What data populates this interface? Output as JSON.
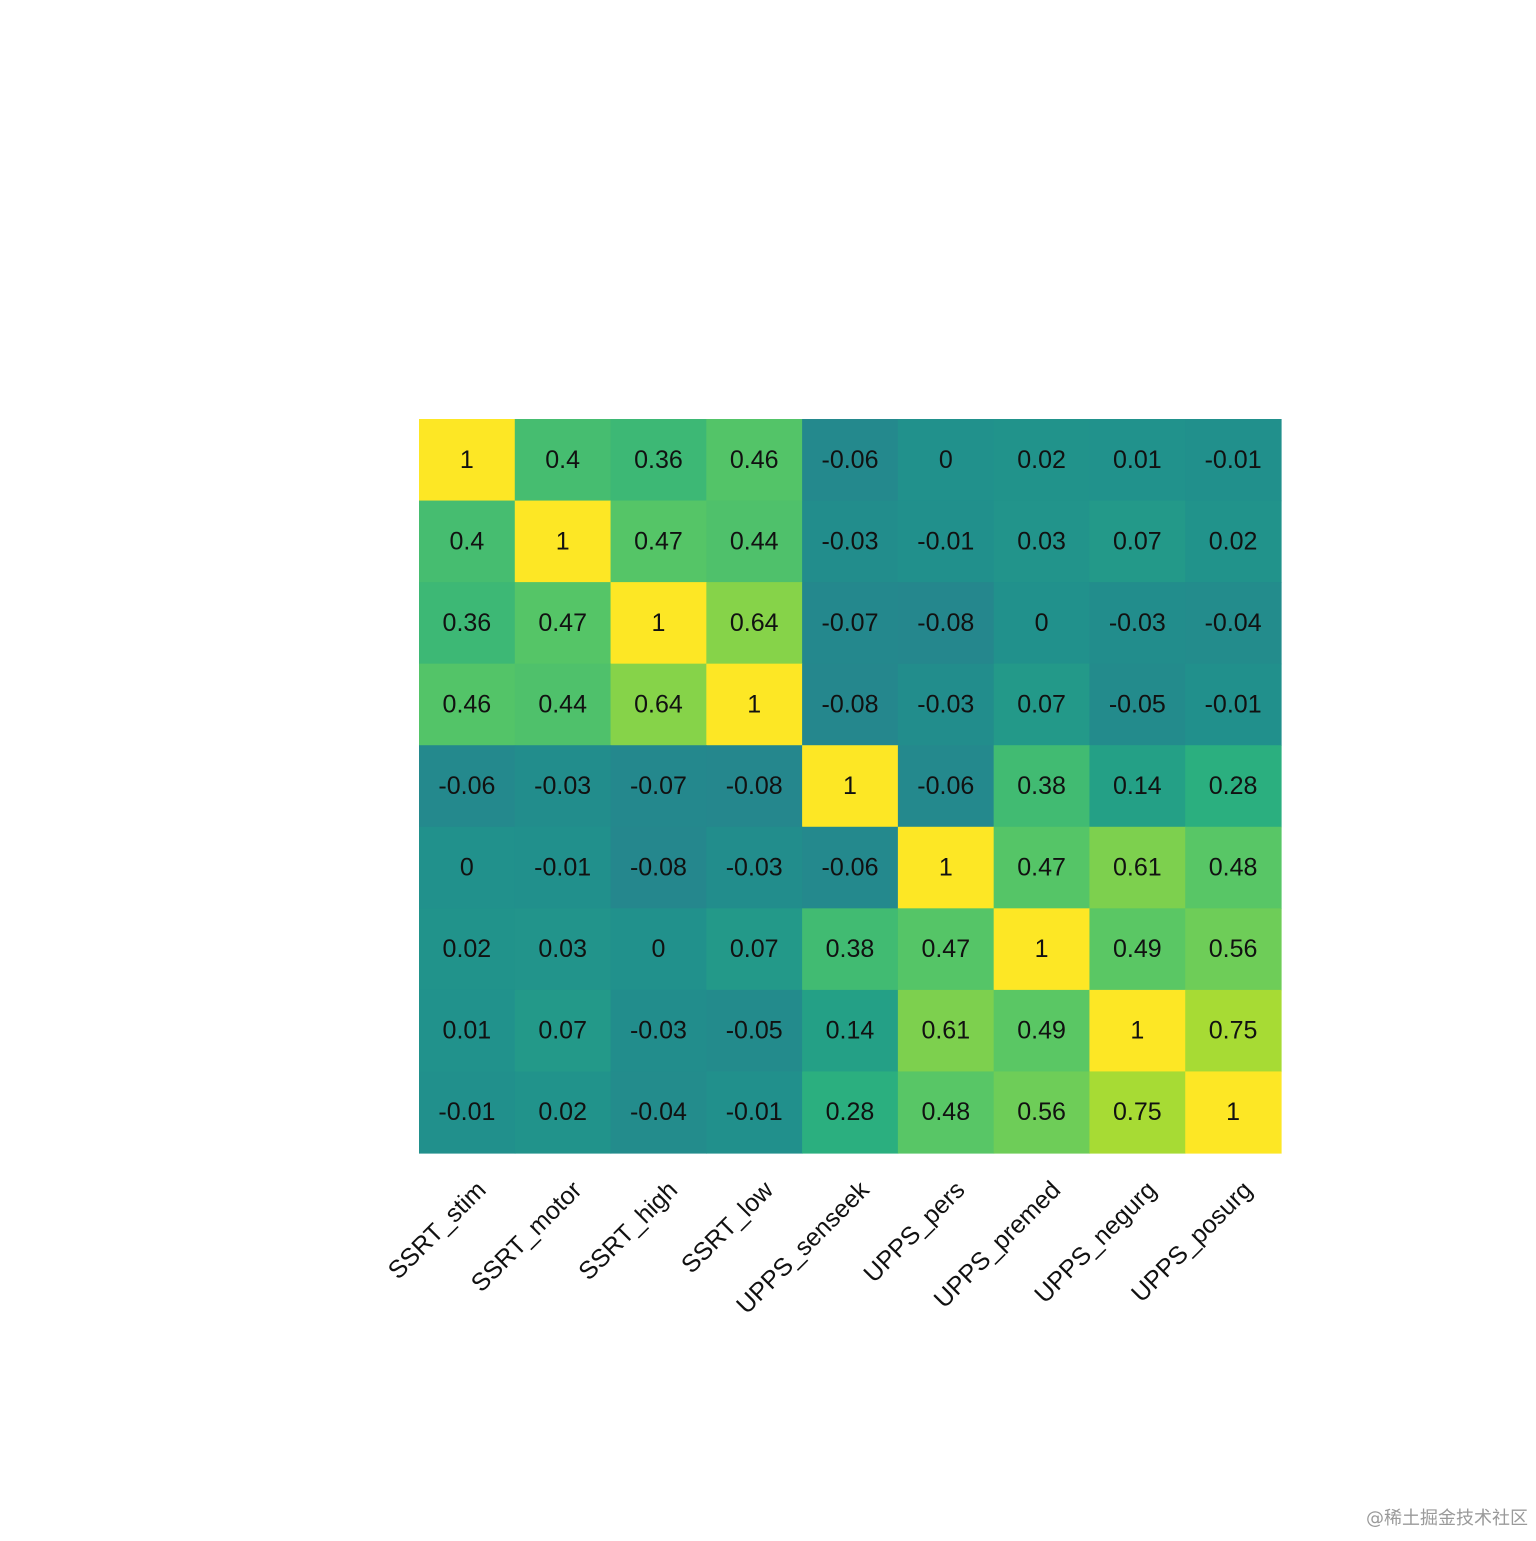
{
  "chart_data": {
    "type": "heatmap",
    "title": "",
    "xlabel": "",
    "ylabel": "",
    "colormap": "viridis",
    "color_range": [
      -1,
      1
    ],
    "legend": "none",
    "grid": false,
    "x_labels": [
      "SSRT_stim",
      "SSRT_motor",
      "SSRT_high",
      "SSRT_low",
      "UPPS_senseek",
      "UPPS_pers",
      "UPPS_premed",
      "UPPS_negurg",
      "UPPS_posurg"
    ],
    "y_labels": [],
    "values": [
      [
        1,
        0.4,
        0.36,
        0.46,
        -0.06,
        0,
        0.02,
        0.01,
        -0.01
      ],
      [
        0.4,
        1,
        0.47,
        0.44,
        -0.03,
        -0.01,
        0.03,
        0.07,
        0.02
      ],
      [
        0.36,
        0.47,
        1,
        0.64,
        -0.07,
        -0.08,
        0,
        -0.03,
        -0.04
      ],
      [
        0.46,
        0.44,
        0.64,
        1,
        -0.08,
        -0.03,
        0.07,
        -0.05,
        -0.01
      ],
      [
        -0.06,
        -0.03,
        -0.07,
        -0.08,
        1,
        -0.06,
        0.38,
        0.14,
        0.28
      ],
      [
        0,
        -0.01,
        -0.08,
        -0.03,
        -0.06,
        1,
        0.47,
        0.61,
        0.48
      ],
      [
        0.02,
        0.03,
        0,
        0.07,
        0.38,
        0.47,
        1,
        0.49,
        0.56
      ],
      [
        0.01,
        0.07,
        -0.03,
        -0.05,
        0.14,
        0.61,
        0.49,
        1,
        0.75
      ],
      [
        -0.01,
        0.02,
        -0.04,
        -0.01,
        0.28,
        0.48,
        0.56,
        0.75,
        1
      ]
    ]
  },
  "watermark": "@稀土掘金技术社区"
}
